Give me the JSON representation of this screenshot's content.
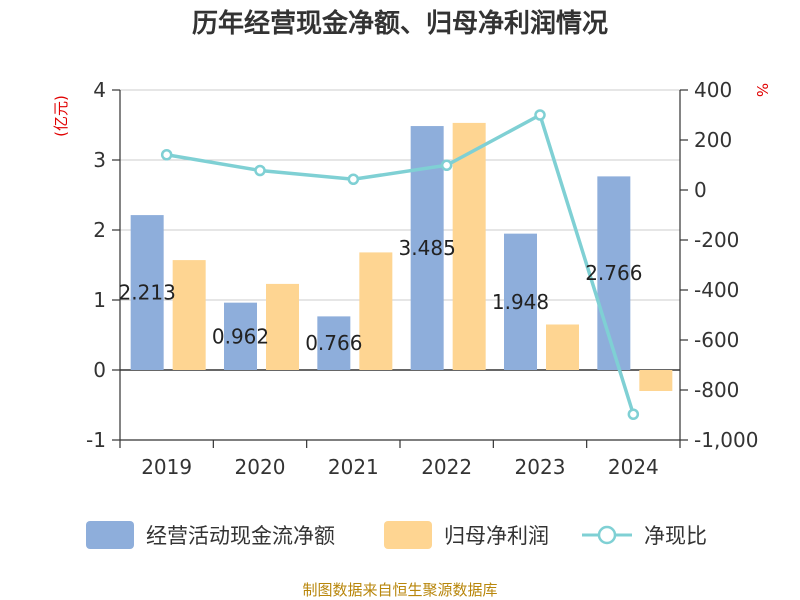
{
  "chart_data": {
    "type": "bar",
    "title": "历年经营现金净额、归母净利润情况",
    "categories": [
      "2019",
      "2020",
      "2021",
      "2022",
      "2023",
      "2024"
    ],
    "y_left": {
      "label": "(亿元)",
      "min": -1,
      "max": 4,
      "ticks": [
        "4",
        "3",
        "2",
        "1",
        "0",
        "-1"
      ]
    },
    "y_right": {
      "label": "%",
      "min": -1000,
      "max": 400,
      "ticks": [
        "400",
        "200",
        "0",
        "-200",
        "-400",
        "-600",
        "-800",
        "-1,000"
      ]
    },
    "series": [
      {
        "name": "经营活动现金流净额",
        "type": "bar",
        "axis": "left",
        "color": "#8eaedb",
        "values": [
          2.213,
          0.962,
          0.766,
          3.485,
          1.948,
          2.766
        ],
        "labels": [
          "2.213",
          "0.962",
          "0.766",
          "3.485",
          "1.948",
          "2.766"
        ]
      },
      {
        "name": "归母净利润",
        "type": "bar",
        "axis": "left",
        "color": "#fed592",
        "values": [
          1.57,
          1.23,
          1.68,
          3.53,
          0.65,
          -0.3
        ]
      },
      {
        "name": "净现比",
        "type": "line",
        "axis": "right",
        "color": "#7fd0d4",
        "values": [
          141,
          78,
          43,
          99,
          300,
          -897
        ]
      }
    ],
    "grid": "horizontal",
    "legend_position": "bottom",
    "source": "制图数据来自恒生聚源数据库"
  }
}
